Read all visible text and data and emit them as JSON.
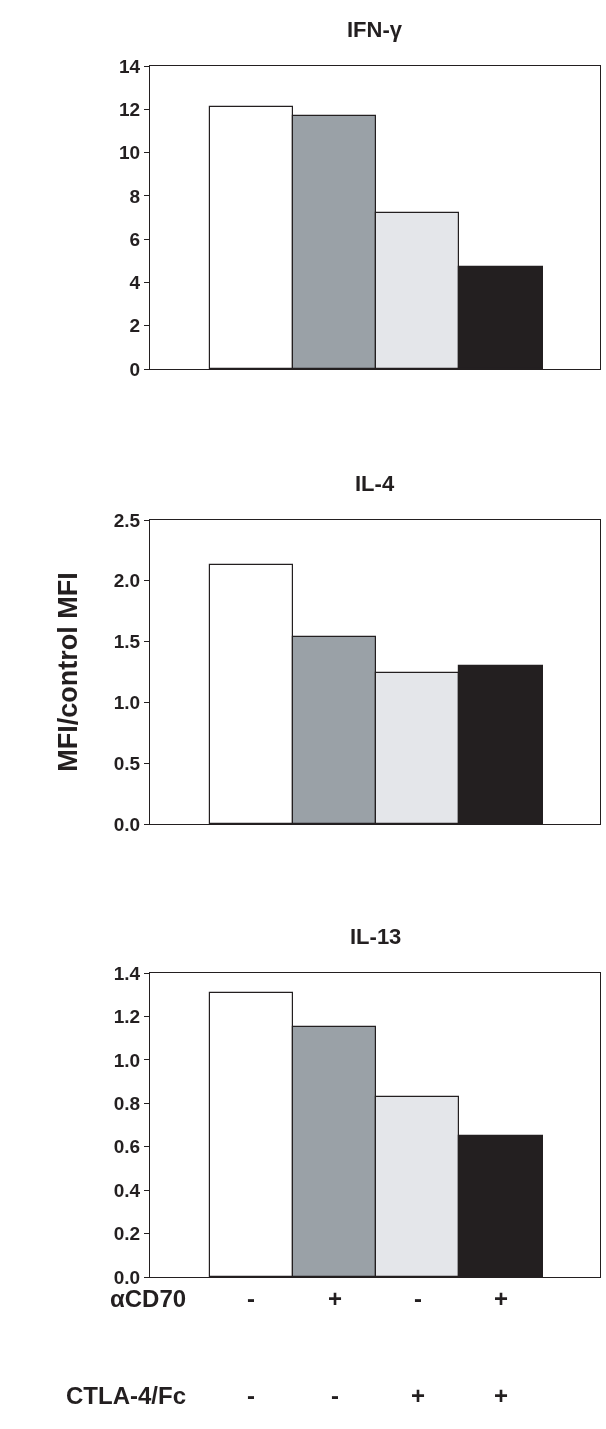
{
  "chart_data": [
    {
      "type": "bar",
      "title": "IFN-γ",
      "categories": [
        null,
        null,
        null,
        null
      ],
      "values": [
        12.1,
        11.7,
        7.2,
        4.7
      ],
      "colors": [
        "#ffffff",
        "#9aa1a7",
        "#e4e6ea",
        "#231f20"
      ],
      "ylim": [
        0,
        14
      ],
      "yticks": [
        0,
        2,
        4,
        6,
        8,
        10,
        12,
        14
      ],
      "grid": false,
      "tick_labels": "y"
    },
    {
      "type": "bar",
      "title": "IL-4",
      "ylabel": "MFI/control MFI",
      "categories": [
        null,
        null,
        null,
        null
      ],
      "values": [
        2.13,
        1.54,
        1.24,
        1.3
      ],
      "colors": [
        "#ffffff",
        "#9aa1a7",
        "#e4e6ea",
        "#231f20"
      ],
      "ylim": [
        0,
        2.5
      ],
      "yticks": [
        {
          "value": 0,
          "label": "0.0"
        },
        0.5,
        {
          "value": 1,
          "label": "1.0"
        },
        1.5,
        {
          "value": 2,
          "label": "2.0"
        },
        2.5
      ],
      "grid": false,
      "tick_labels": "y"
    },
    {
      "type": "bar",
      "title": "IL-13",
      "categories": [
        null,
        null,
        null,
        null
      ],
      "values": [
        1.31,
        1.15,
        0.83,
        0.65
      ],
      "colors": [
        "#ffffff",
        "#9aa1a7",
        "#e4e6ea",
        "#231f20"
      ],
      "ylim": [
        0,
        1.4
      ],
      "yticks": [
        {
          "value": 0,
          "label": "0.0"
        },
        0.2,
        0.4,
        0.6,
        0.8,
        {
          "value": 1,
          "label": "1.0"
        },
        1.2,
        1.4
      ],
      "grid": false,
      "tick_labels": "y",
      "annotations": [
        "αCD70",
        "-",
        "+",
        "-",
        "+",
        "CTLA-4/Fc",
        "-",
        "-",
        "+",
        "+"
      ]
    }
  ]
}
